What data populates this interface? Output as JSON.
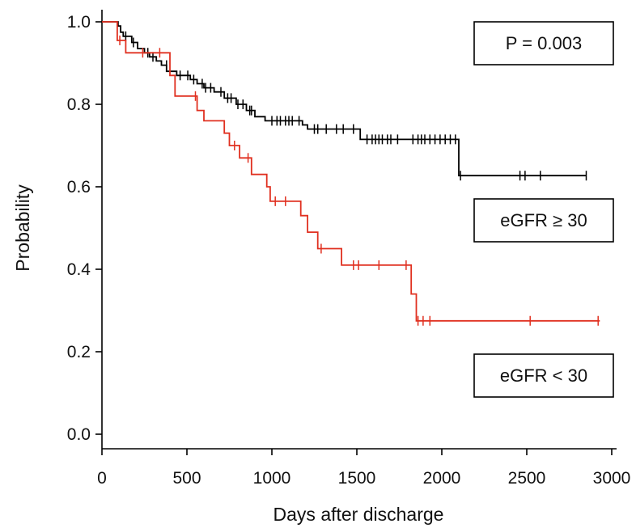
{
  "chart_data": {
    "type": "line",
    "subtype": "kaplan-meier-step",
    "title": "",
    "xlabel": "Days after discharge",
    "ylabel": "Probability",
    "xlim": [
      0,
      3000
    ],
    "ylim": [
      0,
      1.0
    ],
    "xticks": [
      0,
      500,
      1000,
      1500,
      2000,
      2500,
      3000
    ],
    "yticks": [
      "0.0",
      "0.2",
      "0.4",
      "0.6",
      "0.8",
      "1.0"
    ],
    "grid": false,
    "annotations": [
      {
        "id": "pvalue",
        "text": "P = 0.003"
      },
      {
        "id": "label-high",
        "text": "eGFR ≥ 30"
      },
      {
        "id": "label-low",
        "text": "eGFR < 30"
      }
    ],
    "series": [
      {
        "id": "high",
        "color": "#000000",
        "steps": [
          [
            0,
            1.0
          ],
          [
            95,
            1.0
          ],
          [
            95,
            0.99
          ],
          [
            110,
            0.99
          ],
          [
            110,
            0.975
          ],
          [
            125,
            0.975
          ],
          [
            125,
            0.965
          ],
          [
            175,
            0.965
          ],
          [
            175,
            0.95
          ],
          [
            210,
            0.95
          ],
          [
            210,
            0.935
          ],
          [
            250,
            0.935
          ],
          [
            250,
            0.925
          ],
          [
            280,
            0.925
          ],
          [
            280,
            0.915
          ],
          [
            320,
            0.915
          ],
          [
            320,
            0.905
          ],
          [
            350,
            0.905
          ],
          [
            350,
            0.895
          ],
          [
            380,
            0.895
          ],
          [
            380,
            0.88
          ],
          [
            440,
            0.88
          ],
          [
            440,
            0.87
          ],
          [
            520,
            0.87
          ],
          [
            520,
            0.86
          ],
          [
            560,
            0.86
          ],
          [
            560,
            0.85
          ],
          [
            600,
            0.85
          ],
          [
            600,
            0.84
          ],
          [
            660,
            0.84
          ],
          [
            660,
            0.83
          ],
          [
            720,
            0.83
          ],
          [
            720,
            0.815
          ],
          [
            790,
            0.815
          ],
          [
            790,
            0.8
          ],
          [
            850,
            0.8
          ],
          [
            850,
            0.785
          ],
          [
            900,
            0.785
          ],
          [
            900,
            0.77
          ],
          [
            960,
            0.77
          ],
          [
            960,
            0.76
          ],
          [
            1180,
            0.76
          ],
          [
            1180,
            0.75
          ],
          [
            1210,
            0.75
          ],
          [
            1210,
            0.74
          ],
          [
            1520,
            0.74
          ],
          [
            1520,
            0.715
          ],
          [
            2100,
            0.715
          ],
          [
            2100,
            0.627
          ],
          [
            2850,
            0.627
          ]
        ],
        "censored": [
          [
            140,
            0.965
          ],
          [
            185,
            0.95
          ],
          [
            270,
            0.925
          ],
          [
            300,
            0.915
          ],
          [
            380,
            0.895
          ],
          [
            460,
            0.87
          ],
          [
            505,
            0.87
          ],
          [
            540,
            0.86
          ],
          [
            590,
            0.85
          ],
          [
            610,
            0.84
          ],
          [
            640,
            0.84
          ],
          [
            700,
            0.83
          ],
          [
            740,
            0.815
          ],
          [
            760,
            0.815
          ],
          [
            800,
            0.8
          ],
          [
            830,
            0.8
          ],
          [
            870,
            0.785
          ],
          [
            880,
            0.785
          ],
          [
            1000,
            0.76
          ],
          [
            1030,
            0.76
          ],
          [
            1050,
            0.76
          ],
          [
            1080,
            0.76
          ],
          [
            1100,
            0.76
          ],
          [
            1120,
            0.76
          ],
          [
            1160,
            0.76
          ],
          [
            1250,
            0.74
          ],
          [
            1270,
            0.74
          ],
          [
            1320,
            0.74
          ],
          [
            1380,
            0.74
          ],
          [
            1420,
            0.74
          ],
          [
            1480,
            0.74
          ],
          [
            1560,
            0.715
          ],
          [
            1590,
            0.715
          ],
          [
            1610,
            0.715
          ],
          [
            1630,
            0.715
          ],
          [
            1650,
            0.715
          ],
          [
            1680,
            0.715
          ],
          [
            1700,
            0.715
          ],
          [
            1740,
            0.715
          ],
          [
            1830,
            0.715
          ],
          [
            1860,
            0.715
          ],
          [
            1880,
            0.715
          ],
          [
            1900,
            0.715
          ],
          [
            1930,
            0.715
          ],
          [
            1960,
            0.715
          ],
          [
            1990,
            0.715
          ],
          [
            2020,
            0.715
          ],
          [
            2050,
            0.715
          ],
          [
            2080,
            0.715
          ],
          [
            2110,
            0.627
          ],
          [
            2460,
            0.627
          ],
          [
            2490,
            0.627
          ],
          [
            2580,
            0.627
          ],
          [
            2850,
            0.627
          ]
        ]
      },
      {
        "id": "low",
        "color": "#e03020",
        "steps": [
          [
            0,
            1.0
          ],
          [
            90,
            1.0
          ],
          [
            90,
            0.955
          ],
          [
            140,
            0.955
          ],
          [
            140,
            0.925
          ],
          [
            400,
            0.925
          ],
          [
            400,
            0.87
          ],
          [
            430,
            0.87
          ],
          [
            430,
            0.82
          ],
          [
            560,
            0.82
          ],
          [
            560,
            0.785
          ],
          [
            600,
            0.785
          ],
          [
            600,
            0.76
          ],
          [
            720,
            0.76
          ],
          [
            720,
            0.73
          ],
          [
            750,
            0.73
          ],
          [
            750,
            0.7
          ],
          [
            810,
            0.7
          ],
          [
            810,
            0.67
          ],
          [
            880,
            0.67
          ],
          [
            880,
            0.63
          ],
          [
            970,
            0.63
          ],
          [
            970,
            0.6
          ],
          [
            990,
            0.6
          ],
          [
            990,
            0.565
          ],
          [
            1170,
            0.565
          ],
          [
            1170,
            0.53
          ],
          [
            1210,
            0.53
          ],
          [
            1210,
            0.49
          ],
          [
            1270,
            0.49
          ],
          [
            1270,
            0.45
          ],
          [
            1410,
            0.45
          ],
          [
            1410,
            0.41
          ],
          [
            1820,
            0.41
          ],
          [
            1820,
            0.34
          ],
          [
            1850,
            0.34
          ],
          [
            1850,
            0.275
          ],
          [
            2930,
            0.275
          ]
        ]
      }
    ],
    "censored_low": [
      [
        105,
        0.955
      ],
      [
        240,
        0.925
      ],
      [
        340,
        0.925
      ],
      [
        550,
        0.82
      ],
      [
        780,
        0.7
      ],
      [
        860,
        0.67
      ],
      [
        1020,
        0.565
      ],
      [
        1080,
        0.565
      ],
      [
        1290,
        0.45
      ],
      [
        1480,
        0.41
      ],
      [
        1510,
        0.41
      ],
      [
        1630,
        0.41
      ],
      [
        1790,
        0.41
      ],
      [
        1860,
        0.275
      ],
      [
        1890,
        0.275
      ],
      [
        1930,
        0.275
      ],
      [
        2520,
        0.275
      ],
      [
        2920,
        0.275
      ]
    ]
  }
}
